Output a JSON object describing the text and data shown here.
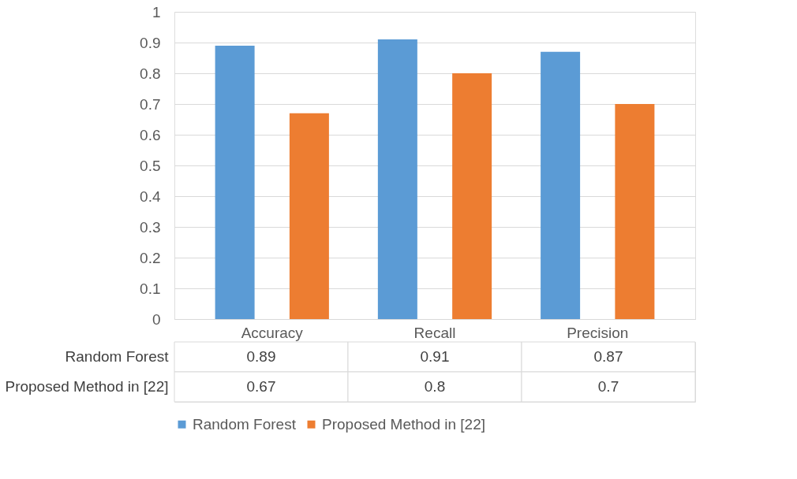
{
  "chart_data": {
    "type": "bar",
    "categories": [
      "Accuracy",
      "Recall",
      "Precision"
    ],
    "series": [
      {
        "name": "Random Forest",
        "color": "#5b9bd5",
        "values": [
          0.89,
          0.91,
          0.87
        ]
      },
      {
        "name": "Proposed Method in [22]",
        "color": "#ed7d31",
        "values": [
          0.67,
          0.8,
          0.7
        ]
      }
    ],
    "ylim": [
      0,
      1
    ],
    "yticks": [
      0,
      0.1,
      0.2,
      0.3,
      0.4,
      0.5,
      0.6,
      0.7,
      0.8,
      0.9,
      1
    ],
    "grid": "y",
    "legend": "bottom",
    "data_labels": true
  }
}
